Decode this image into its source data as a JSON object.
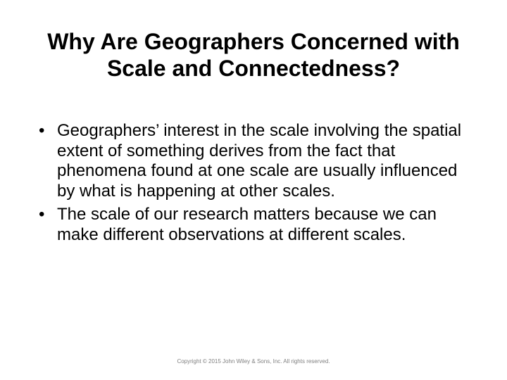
{
  "title": "Why Are Geographers Concerned with Scale and Connectedness?",
  "bullets": [
    "Geographers’ interest in the scale involving the spatial extent of something derives from the fact that phenomena found at one scale are usually influenced by what is happening at other scales.",
    "The scale of our research matters because we can make different observations at different scales."
  ],
  "footer": "Copyright © 2015 John Wiley & Sons, Inc. All rights reserved.",
  "style": {
    "background_color": "#ffffff",
    "text_color": "#000000",
    "footer_color": "#808080",
    "title_fontsize": 32,
    "body_fontsize": 24,
    "footer_fontsize": 8,
    "font_family": "Arial"
  }
}
